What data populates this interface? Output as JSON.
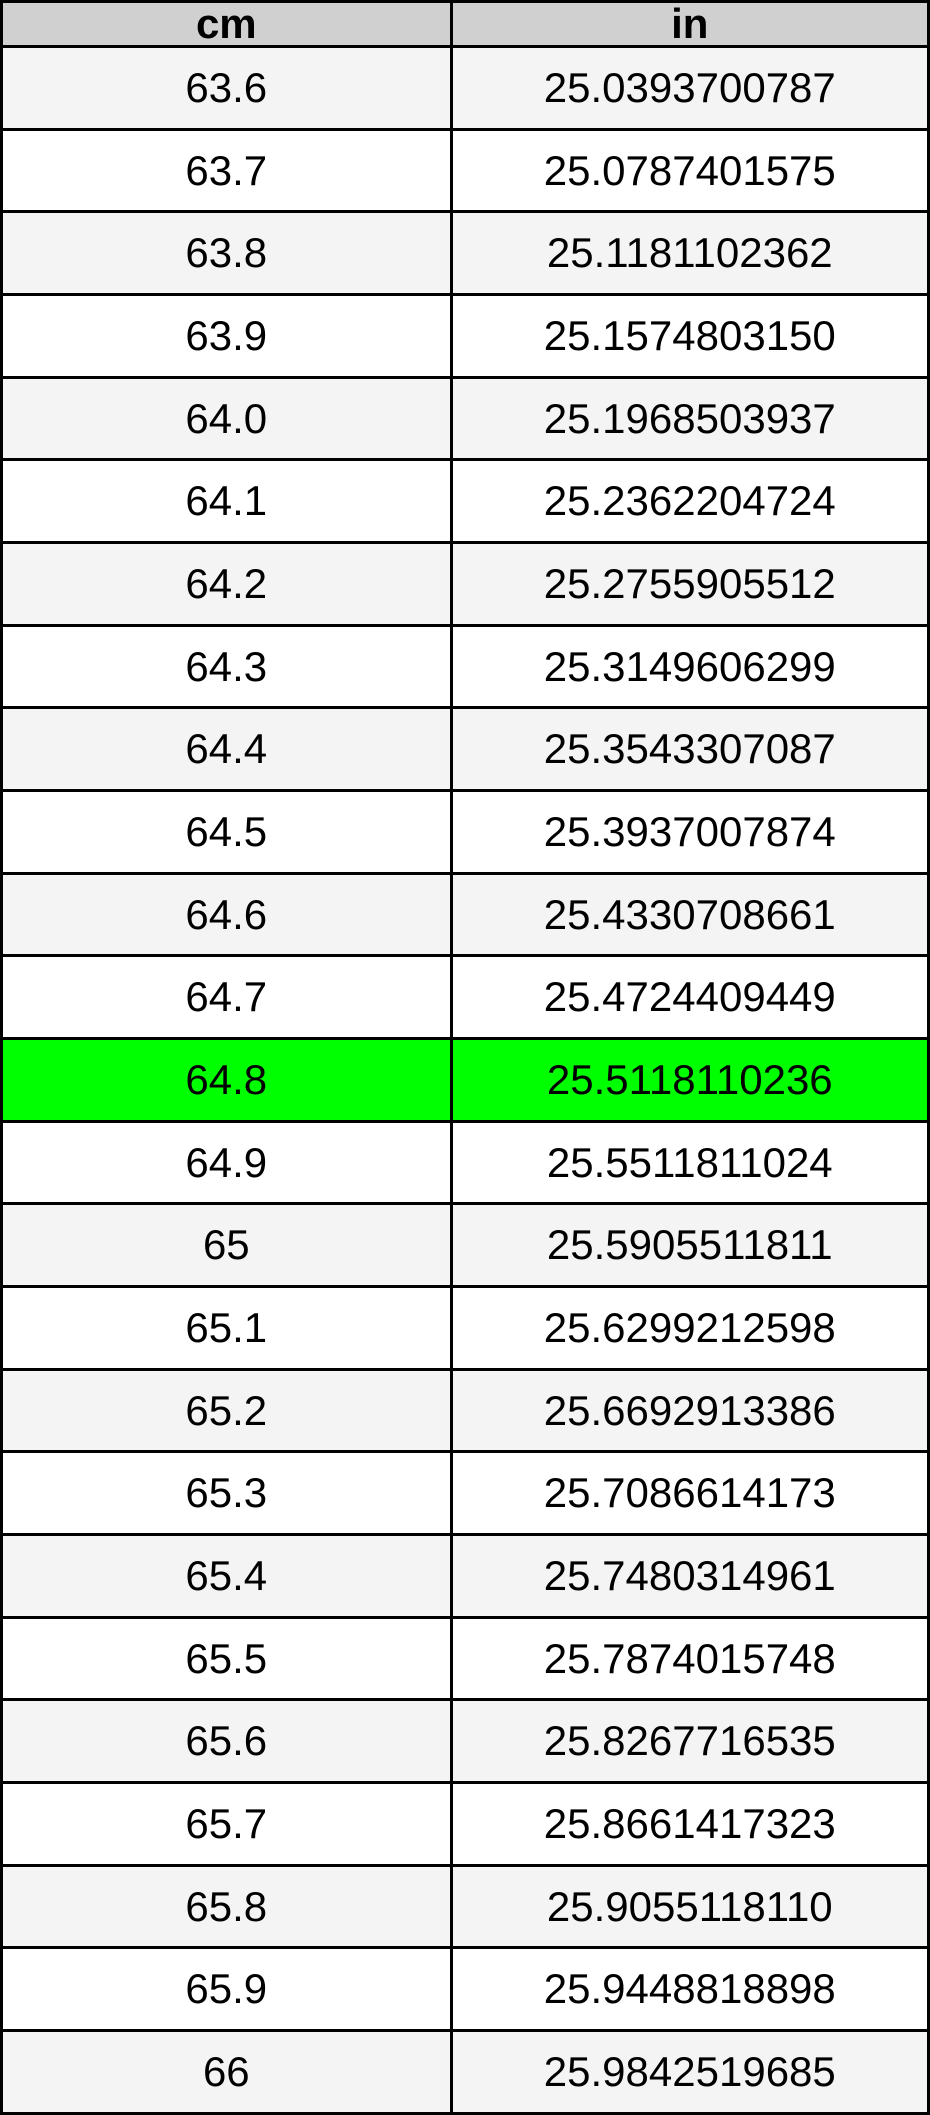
{
  "chart_data": {
    "type": "table",
    "columns": [
      "cm",
      "in"
    ],
    "highlighted_row_index": 12,
    "rows": [
      {
        "cm": "63.6",
        "in": "25.0393700787",
        "highlighted": false
      },
      {
        "cm": "63.7",
        "in": "25.0787401575",
        "highlighted": false
      },
      {
        "cm": "63.8",
        "in": "25.1181102362",
        "highlighted": false
      },
      {
        "cm": "63.9",
        "in": "25.1574803150",
        "highlighted": false
      },
      {
        "cm": "64.0",
        "in": "25.1968503937",
        "highlighted": false
      },
      {
        "cm": "64.1",
        "in": "25.2362204724",
        "highlighted": false
      },
      {
        "cm": "64.2",
        "in": "25.2755905512",
        "highlighted": false
      },
      {
        "cm": "64.3",
        "in": "25.3149606299",
        "highlighted": false
      },
      {
        "cm": "64.4",
        "in": "25.3543307087",
        "highlighted": false
      },
      {
        "cm": "64.5",
        "in": "25.3937007874",
        "highlighted": false
      },
      {
        "cm": "64.6",
        "in": "25.4330708661",
        "highlighted": false
      },
      {
        "cm": "64.7",
        "in": "25.4724409449",
        "highlighted": false
      },
      {
        "cm": "64.8",
        "in": "25.5118110236",
        "highlighted": true
      },
      {
        "cm": "64.9",
        "in": "25.5511811024",
        "highlighted": false
      },
      {
        "cm": "65",
        "in": "25.5905511811",
        "highlighted": false
      },
      {
        "cm": "65.1",
        "in": "25.6299212598",
        "highlighted": false
      },
      {
        "cm": "65.2",
        "in": "25.6692913386",
        "highlighted": false
      },
      {
        "cm": "65.3",
        "in": "25.7086614173",
        "highlighted": false
      },
      {
        "cm": "65.4",
        "in": "25.7480314961",
        "highlighted": false
      },
      {
        "cm": "65.5",
        "in": "25.7874015748",
        "highlighted": false
      },
      {
        "cm": "65.6",
        "in": "25.8267716535",
        "highlighted": false
      },
      {
        "cm": "65.7",
        "in": "25.8661417323",
        "highlighted": false
      },
      {
        "cm": "65.8",
        "in": "25.9055118110",
        "highlighted": false
      },
      {
        "cm": "65.9",
        "in": "25.9448818898",
        "highlighted": false
      },
      {
        "cm": "66",
        "in": "25.9842519685",
        "highlighted": false
      }
    ]
  },
  "colors": {
    "highlight": "#00ff00",
    "header_bg": "#d0d0d0",
    "stripe": "#f4f4f4",
    "row_bg": "#ffffff",
    "border": "#000000",
    "text": "#000000"
  }
}
